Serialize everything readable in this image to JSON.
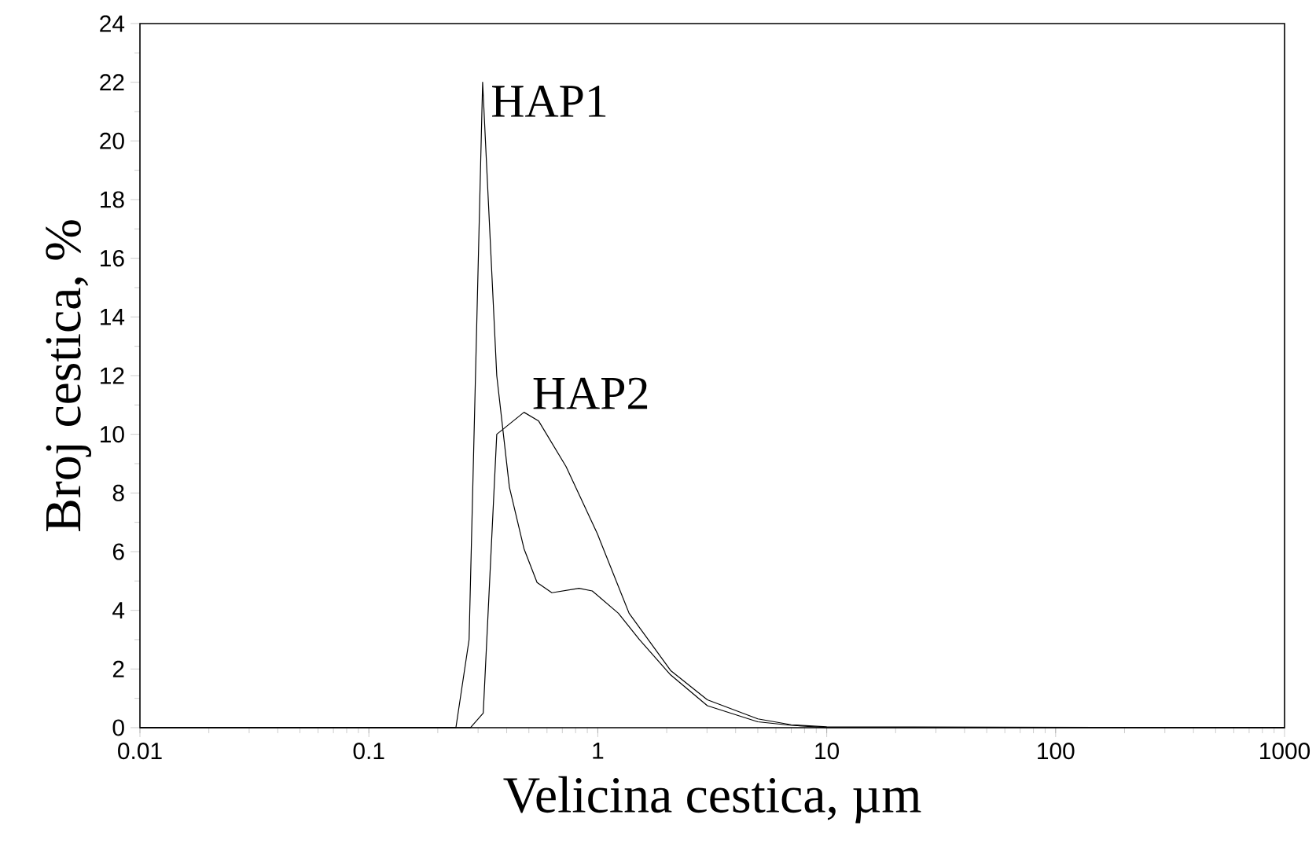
{
  "chart_data": {
    "type": "line",
    "xlabel": "Velicina cestica, µm",
    "ylabel": "Broj cestica, %",
    "log": "x",
    "xlim": [
      0.01,
      1000
    ],
    "ylim": [
      0,
      24
    ],
    "xticks": [
      0.01,
      0.1,
      1,
      10,
      100,
      1000
    ],
    "yticks": [
      0,
      2,
      4,
      6,
      8,
      10,
      12,
      14,
      16,
      18,
      20,
      22,
      24
    ],
    "series": [
      {
        "name": "HAP1",
        "color": "#000000",
        "x": [
          0.01,
          0.24,
          0.274,
          0.314,
          0.362,
          0.411,
          0.476,
          0.543,
          0.63,
          0.828,
          0.946,
          1.23,
          1.52,
          2.08,
          3.01,
          5,
          7,
          10,
          1000
        ],
        "values": [
          0,
          0,
          3.0,
          22.0,
          12.0,
          8.2,
          6.1,
          4.95,
          4.6,
          4.75,
          4.66,
          3.9,
          3.0,
          1.8,
          0.75,
          0.2,
          0.08,
          0,
          0
        ]
      },
      {
        "name": "HAP2",
        "color": "#000000",
        "x": [
          0.01,
          0.278,
          0.316,
          0.362,
          0.476,
          0.552,
          0.727,
          0.997,
          1.37,
          2.08,
          3.01,
          5,
          7,
          10,
          1000
        ],
        "values": [
          0,
          0,
          0.5,
          10.0,
          10.75,
          10.45,
          8.9,
          6.6,
          3.9,
          1.95,
          0.95,
          0.3,
          0.1,
          0.03,
          0
        ]
      }
    ]
  }
}
